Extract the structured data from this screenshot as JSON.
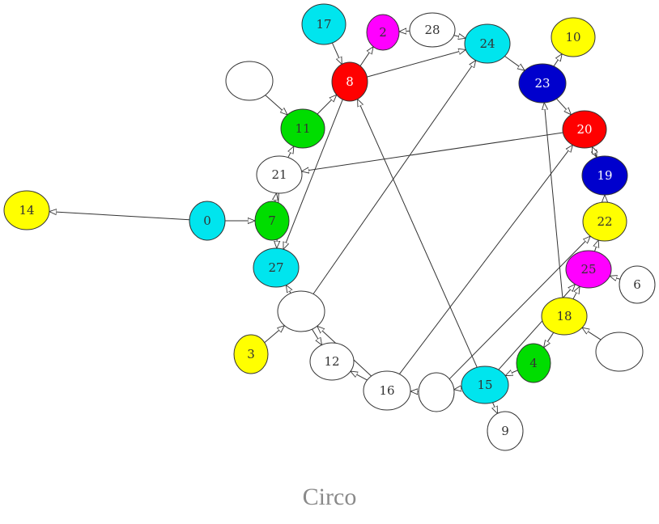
{
  "caption": "Circo",
  "colors": {
    "cyan": "#00e5ee",
    "magenta": "#ff00ff",
    "yellow": "#ffff00",
    "red": "#ff0000",
    "blue": "#0000cd",
    "green": "#00dd00",
    "white": "#ffffff",
    "stroke": "#333333"
  },
  "nodes": [
    {
      "id": "n17",
      "label": "17",
      "color": "cyan"
    },
    {
      "id": "n2",
      "label": "2",
      "color": "magenta"
    },
    {
      "id": "n28",
      "label": "28",
      "color": "white"
    },
    {
      "id": "n24",
      "label": "24",
      "color": "cyan"
    },
    {
      "id": "n10",
      "label": "10",
      "color": "yellow"
    },
    {
      "id": "n8",
      "label": "8",
      "color": "red"
    },
    {
      "id": "nA",
      "label": "",
      "color": "white"
    },
    {
      "id": "n23",
      "label": "23",
      "color": "blue"
    },
    {
      "id": "n11",
      "label": "11",
      "color": "green"
    },
    {
      "id": "n20",
      "label": "20",
      "color": "red"
    },
    {
      "id": "n21",
      "label": "21",
      "color": "white"
    },
    {
      "id": "n19",
      "label": "19",
      "color": "blue"
    },
    {
      "id": "n14",
      "label": "14",
      "color": "yellow"
    },
    {
      "id": "n0",
      "label": "0",
      "color": "cyan"
    },
    {
      "id": "n7",
      "label": "7",
      "color": "green"
    },
    {
      "id": "n22",
      "label": "22",
      "color": "yellow"
    },
    {
      "id": "n27",
      "label": "27",
      "color": "cyan"
    },
    {
      "id": "n25",
      "label": "25",
      "color": "magenta"
    },
    {
      "id": "n6",
      "label": "6",
      "color": "white"
    },
    {
      "id": "nB",
      "label": "",
      "color": "white"
    },
    {
      "id": "n18",
      "label": "18",
      "color": "yellow"
    },
    {
      "id": "nC",
      "label": "",
      "color": "white"
    },
    {
      "id": "n3",
      "label": "3",
      "color": "yellow"
    },
    {
      "id": "n12",
      "label": "12",
      "color": "white"
    },
    {
      "id": "n4",
      "label": "4",
      "color": "green"
    },
    {
      "id": "n16",
      "label": "16",
      "color": "white"
    },
    {
      "id": "nD",
      "label": "",
      "color": "white"
    },
    {
      "id": "n15",
      "label": "15",
      "color": "cyan"
    },
    {
      "id": "n9",
      "label": "9",
      "color": "white"
    }
  ],
  "edges": [
    {
      "from": "n17",
      "to": "n8"
    },
    {
      "from": "n8",
      "to": "n2"
    },
    {
      "from": "n28",
      "to": "n2"
    },
    {
      "from": "n28",
      "to": "n24"
    },
    {
      "from": "n8",
      "to": "n24"
    },
    {
      "from": "n24",
      "to": "n23"
    },
    {
      "from": "n23",
      "to": "n10"
    },
    {
      "from": "n23",
      "to": "n20"
    },
    {
      "from": "nA",
      "to": "n11"
    },
    {
      "from": "n11",
      "to": "n8"
    },
    {
      "from": "n21",
      "to": "n11"
    },
    {
      "from": "n20",
      "to": "n21"
    },
    {
      "from": "n20",
      "to": "n19"
    },
    {
      "from": "n19",
      "to": "n20"
    },
    {
      "from": "n0",
      "to": "n14"
    },
    {
      "from": "n0",
      "to": "n7"
    },
    {
      "from": "n7",
      "to": "n21"
    },
    {
      "from": "n21",
      "to": "n27"
    },
    {
      "from": "n8",
      "to": "n27"
    },
    {
      "from": "n22",
      "to": "n19"
    },
    {
      "from": "n25",
      "to": "n22"
    },
    {
      "from": "n6",
      "to": "n25"
    },
    {
      "from": "n18",
      "to": "n25"
    },
    {
      "from": "n18",
      "to": "n23"
    },
    {
      "from": "nC",
      "to": "n18"
    },
    {
      "from": "n18",
      "to": "n4"
    },
    {
      "from": "nB",
      "to": "n27"
    },
    {
      "from": "n3",
      "to": "nB"
    },
    {
      "from": "nB",
      "to": "n24"
    },
    {
      "from": "n16",
      "to": "nB"
    },
    {
      "from": "nB",
      "to": "n12"
    },
    {
      "from": "n16",
      "to": "n12"
    },
    {
      "from": "n16",
      "to": "n20"
    },
    {
      "from": "nD",
      "to": "n16"
    },
    {
      "from": "n15",
      "to": "nD"
    },
    {
      "from": "n4",
      "to": "n15"
    },
    {
      "from": "n15",
      "to": "n8"
    },
    {
      "from": "n15",
      "to": "n9"
    },
    {
      "from": "nD",
      "to": "n22"
    },
    {
      "from": "n15",
      "to": "n25"
    }
  ]
}
